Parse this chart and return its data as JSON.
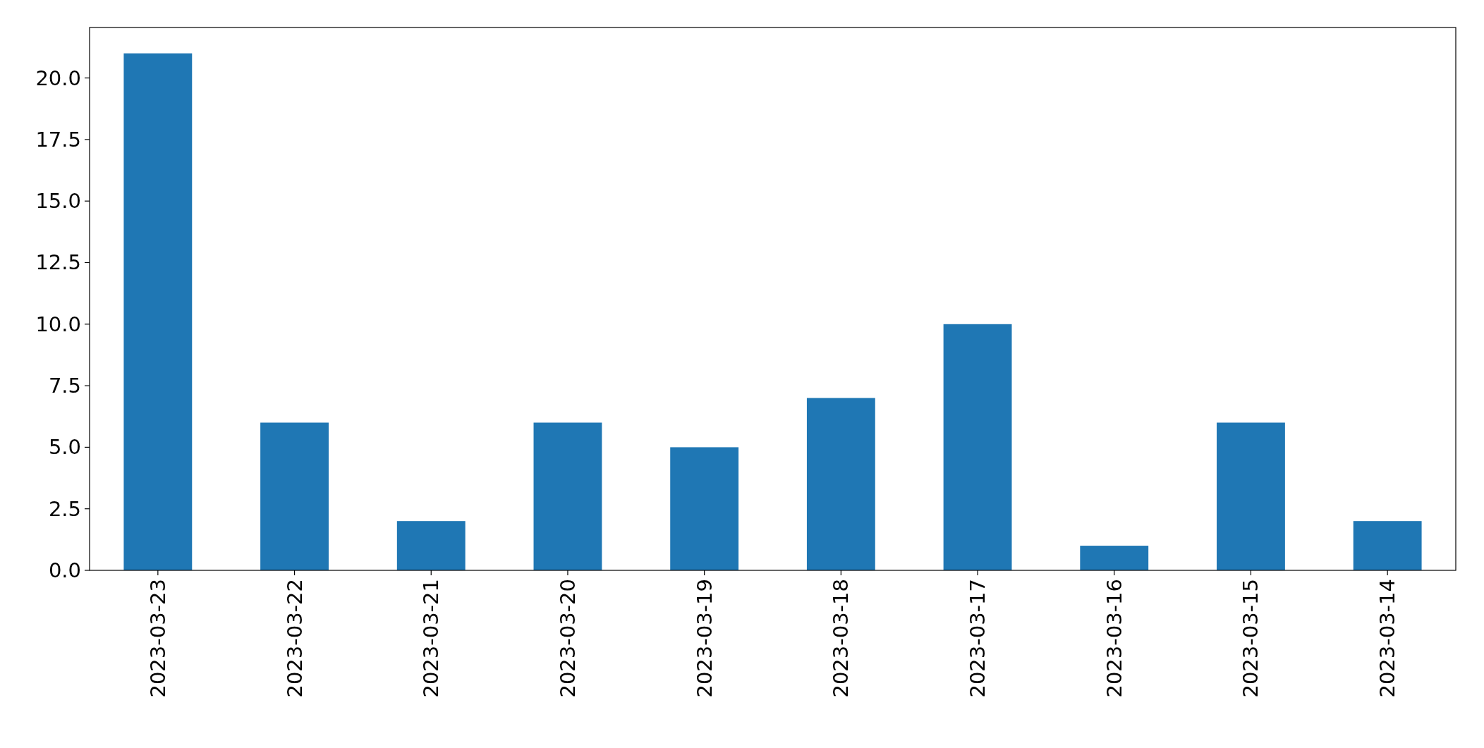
{
  "chart_data": {
    "type": "bar",
    "categories": [
      "2023-03-23",
      "2023-03-22",
      "2023-03-21",
      "2023-03-20",
      "2023-03-19",
      "2023-03-18",
      "2023-03-17",
      "2023-03-16",
      "2023-03-15",
      "2023-03-14"
    ],
    "values": [
      21,
      6,
      2,
      6,
      5,
      7,
      10,
      1,
      6,
      2
    ],
    "color": "#1f77b4",
    "ylim": [
      0,
      22.05
    ],
    "yticks": [
      {
        "value": 0,
        "label": "0.0"
      },
      {
        "value": 2.5,
        "label": "2.5"
      },
      {
        "value": 5,
        "label": "5.0"
      },
      {
        "value": 7.5,
        "label": "7.5"
      },
      {
        "value": 10,
        "label": "10.0"
      },
      {
        "value": 12.5,
        "label": "12.5"
      },
      {
        "value": 15,
        "label": "15.0"
      },
      {
        "value": 17.5,
        "label": "17.5"
      },
      {
        "value": 20,
        "label": "20.0"
      }
    ],
    "grid": false
  }
}
